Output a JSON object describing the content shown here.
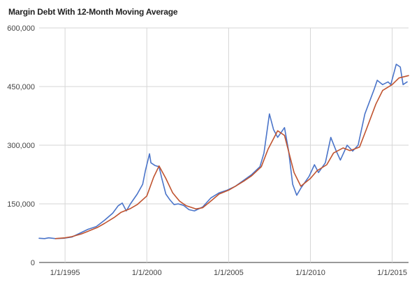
{
  "chart_data": {
    "type": "line",
    "title": "Margin Debt With 12-Month Moving Average",
    "xlabel": "",
    "ylabel": "",
    "x_range": [
      "1993-06-01",
      "2016-01-01"
    ],
    "ylim": [
      0,
      600000
    ],
    "y_ticks": [
      {
        "value": 0,
        "label": "0"
      },
      {
        "value": 150000,
        "label": "150,000"
      },
      {
        "value": 300000,
        "label": "300,000"
      },
      {
        "value": 450000,
        "label": "450,000"
      },
      {
        "value": 600000,
        "label": "600,000"
      }
    ],
    "x_ticks": [
      {
        "value": "1995-01-01",
        "label": "1/1/1995"
      },
      {
        "value": "2000-01-01",
        "label": "1/1/2000"
      },
      {
        "value": "2005-01-01",
        "label": "1/1/2005"
      },
      {
        "value": "2010-01-01",
        "label": "1/1/2010"
      },
      {
        "value": "2015-01-01",
        "label": "1/1/2015"
      }
    ],
    "grid": true,
    "legend": "none",
    "series": [
      {
        "color": "#4a74c9",
        "points": [
          [
            "1993-06-01",
            62000
          ],
          [
            "1993-10-01",
            61000
          ],
          [
            "1994-01-01",
            63000
          ],
          [
            "1994-06-01",
            61000
          ],
          [
            "1994-12-01",
            62000
          ],
          [
            "1995-06-01",
            65000
          ],
          [
            "1995-12-01",
            75000
          ],
          [
            "1996-06-01",
            85000
          ],
          [
            "1996-12-01",
            92000
          ],
          [
            "1997-06-01",
            108000
          ],
          [
            "1997-12-01",
            126000
          ],
          [
            "1998-04-01",
            145000
          ],
          [
            "1998-07-01",
            152000
          ],
          [
            "1998-10-01",
            132000
          ],
          [
            "1999-01-01",
            150000
          ],
          [
            "1999-06-01",
            175000
          ],
          [
            "1999-10-01",
            200000
          ],
          [
            "1999-12-01",
            235000
          ],
          [
            "2000-03-01",
            278000
          ],
          [
            "2000-04-01",
            255000
          ],
          [
            "2000-07-01",
            248000
          ],
          [
            "2000-10-01",
            245000
          ],
          [
            "2000-12-01",
            215000
          ],
          [
            "2001-03-01",
            175000
          ],
          [
            "2001-06-01",
            160000
          ],
          [
            "2001-09-01",
            148000
          ],
          [
            "2001-12-01",
            150000
          ],
          [
            "2002-04-01",
            146000
          ],
          [
            "2002-08-01",
            135000
          ],
          [
            "2002-12-01",
            132000
          ],
          [
            "2003-06-01",
            142000
          ],
          [
            "2003-12-01",
            165000
          ],
          [
            "2004-06-01",
            178000
          ],
          [
            "2004-12-01",
            185000
          ],
          [
            "2005-06-01",
            195000
          ],
          [
            "2005-12-01",
            210000
          ],
          [
            "2006-06-01",
            225000
          ],
          [
            "2006-12-01",
            245000
          ],
          [
            "2007-03-01",
            280000
          ],
          [
            "2007-07-01",
            380000
          ],
          [
            "2007-10-01",
            340000
          ],
          [
            "2008-01-01",
            320000
          ],
          [
            "2008-06-01",
            345000
          ],
          [
            "2008-09-01",
            285000
          ],
          [
            "2008-12-01",
            200000
          ],
          [
            "2009-03-01",
            172000
          ],
          [
            "2009-06-01",
            190000
          ],
          [
            "2009-12-01",
            220000
          ],
          [
            "2010-04-01",
            250000
          ],
          [
            "2010-07-01",
            230000
          ],
          [
            "2010-12-01",
            255000
          ],
          [
            "2011-04-01",
            320000
          ],
          [
            "2011-08-01",
            285000
          ],
          [
            "2011-11-01",
            262000
          ],
          [
            "2012-04-01",
            300000
          ],
          [
            "2012-08-01",
            285000
          ],
          [
            "2012-12-01",
            300000
          ],
          [
            "2013-05-01",
            380000
          ],
          [
            "2013-12-01",
            445000
          ],
          [
            "2014-02-01",
            466000
          ],
          [
            "2014-06-01",
            455000
          ],
          [
            "2014-10-01",
            462000
          ],
          [
            "2014-12-01",
            455000
          ],
          [
            "2015-04-01",
            507000
          ],
          [
            "2015-07-01",
            500000
          ],
          [
            "2015-09-01",
            455000
          ],
          [
            "2015-12-01",
            462000
          ]
        ]
      },
      {
        "color": "#c0532f",
        "points": [
          [
            "1994-06-01",
            61000
          ],
          [
            "1995-01-01",
            63000
          ],
          [
            "1995-06-01",
            66000
          ],
          [
            "1996-01-01",
            73000
          ],
          [
            "1996-06-01",
            80000
          ],
          [
            "1997-01-01",
            90000
          ],
          [
            "1997-06-01",
            100000
          ],
          [
            "1998-01-01",
            115000
          ],
          [
            "1998-06-01",
            128000
          ],
          [
            "1999-01-01",
            138000
          ],
          [
            "1999-06-01",
            148000
          ],
          [
            "2000-01-01",
            170000
          ],
          [
            "2000-06-01",
            218000
          ],
          [
            "2000-10-01",
            247000
          ],
          [
            "2001-03-01",
            215000
          ],
          [
            "2001-08-01",
            178000
          ],
          [
            "2002-01-01",
            157000
          ],
          [
            "2002-06-01",
            145000
          ],
          [
            "2003-01-01",
            137000
          ],
          [
            "2003-06-01",
            140000
          ],
          [
            "2004-01-01",
            160000
          ],
          [
            "2004-06-01",
            175000
          ],
          [
            "2005-01-01",
            185000
          ],
          [
            "2005-06-01",
            195000
          ],
          [
            "2006-01-01",
            210000
          ],
          [
            "2006-06-01",
            222000
          ],
          [
            "2007-01-01",
            245000
          ],
          [
            "2007-06-01",
            290000
          ],
          [
            "2008-01-01",
            337000
          ],
          [
            "2008-06-01",
            325000
          ],
          [
            "2009-01-01",
            230000
          ],
          [
            "2009-06-01",
            195000
          ],
          [
            "2010-01-01",
            215000
          ],
          [
            "2010-06-01",
            235000
          ],
          [
            "2011-01-01",
            250000
          ],
          [
            "2011-06-01",
            280000
          ],
          [
            "2012-01-01",
            293000
          ],
          [
            "2012-06-01",
            286000
          ],
          [
            "2013-01-01",
            295000
          ],
          [
            "2013-06-01",
            340000
          ],
          [
            "2014-01-01",
            405000
          ],
          [
            "2014-06-01",
            440000
          ],
          [
            "2015-01-01",
            455000
          ],
          [
            "2015-06-01",
            472000
          ],
          [
            "2016-01-01",
            478000
          ]
        ]
      }
    ]
  }
}
